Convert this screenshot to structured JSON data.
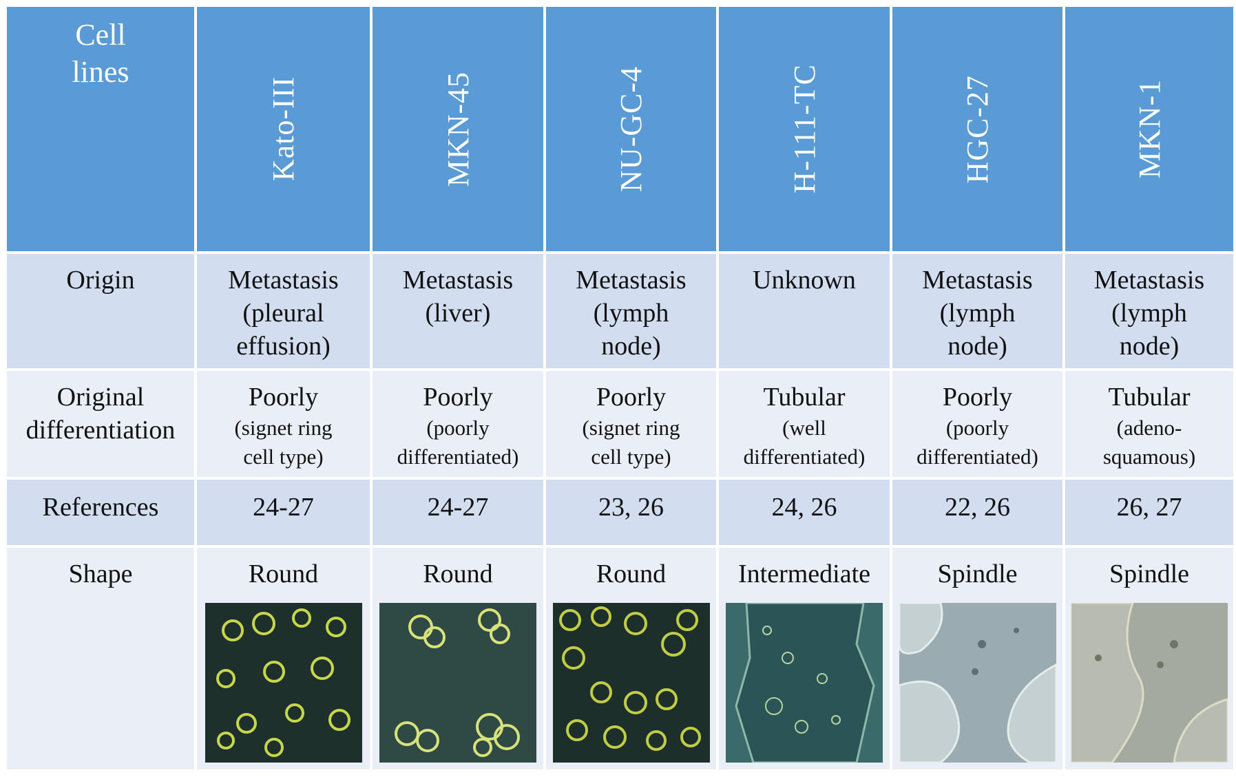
{
  "header": {
    "corner_line1": "Cell",
    "corner_line2": "lines",
    "cell_lines": [
      "Kato-III",
      "MKN-45",
      "NU-GC-4",
      "H-111-TC",
      "HGC-27",
      "MKN-1"
    ]
  },
  "rows": {
    "origin": {
      "label": "Origin",
      "values": [
        [
          "Metastasis",
          "(pleural",
          "effusion)"
        ],
        [
          "Metastasis",
          "(liver)"
        ],
        [
          "Metastasis",
          "(lymph",
          "node)"
        ],
        [
          "Unknown"
        ],
        [
          "Metastasis",
          "(lymph",
          "node)"
        ],
        [
          "Metastasis",
          "(lymph",
          "node)"
        ]
      ]
    },
    "differentiation": {
      "label_line1": "Original",
      "label_line2": "differentiation",
      "values": [
        {
          "main": "Poorly",
          "sub1": "(signet ring",
          "sub2": "cell type)"
        },
        {
          "main": "Poorly",
          "sub1": "(poorly",
          "sub2": "differentiated)"
        },
        {
          "main": "Poorly",
          "sub1": "(signet ring",
          "sub2": "cell type)"
        },
        {
          "main": "Tubular",
          "sub1": "(well",
          "sub2": "differentiated)"
        },
        {
          "main": "Poorly",
          "sub1": "(poorly",
          "sub2": "differentiated)"
        },
        {
          "main": "Tubular",
          "sub1": "(adeno-",
          "sub2": "squamous)"
        }
      ]
    },
    "references": {
      "label": "References",
      "values": [
        "24-27",
        "24-27",
        "23, 26",
        "24, 26",
        "22, 26",
        "26, 27"
      ]
    },
    "shape": {
      "label": "Shape",
      "values": [
        "Round",
        "Round",
        "Round",
        "Intermediate",
        "Spindle",
        "Spindle"
      ]
    }
  },
  "colors": {
    "header_bg": "#5b9bd5",
    "dark_row_bg": "#d2deef",
    "light_row_bg": "#eaeff7",
    "header_text": "#ffffff"
  }
}
